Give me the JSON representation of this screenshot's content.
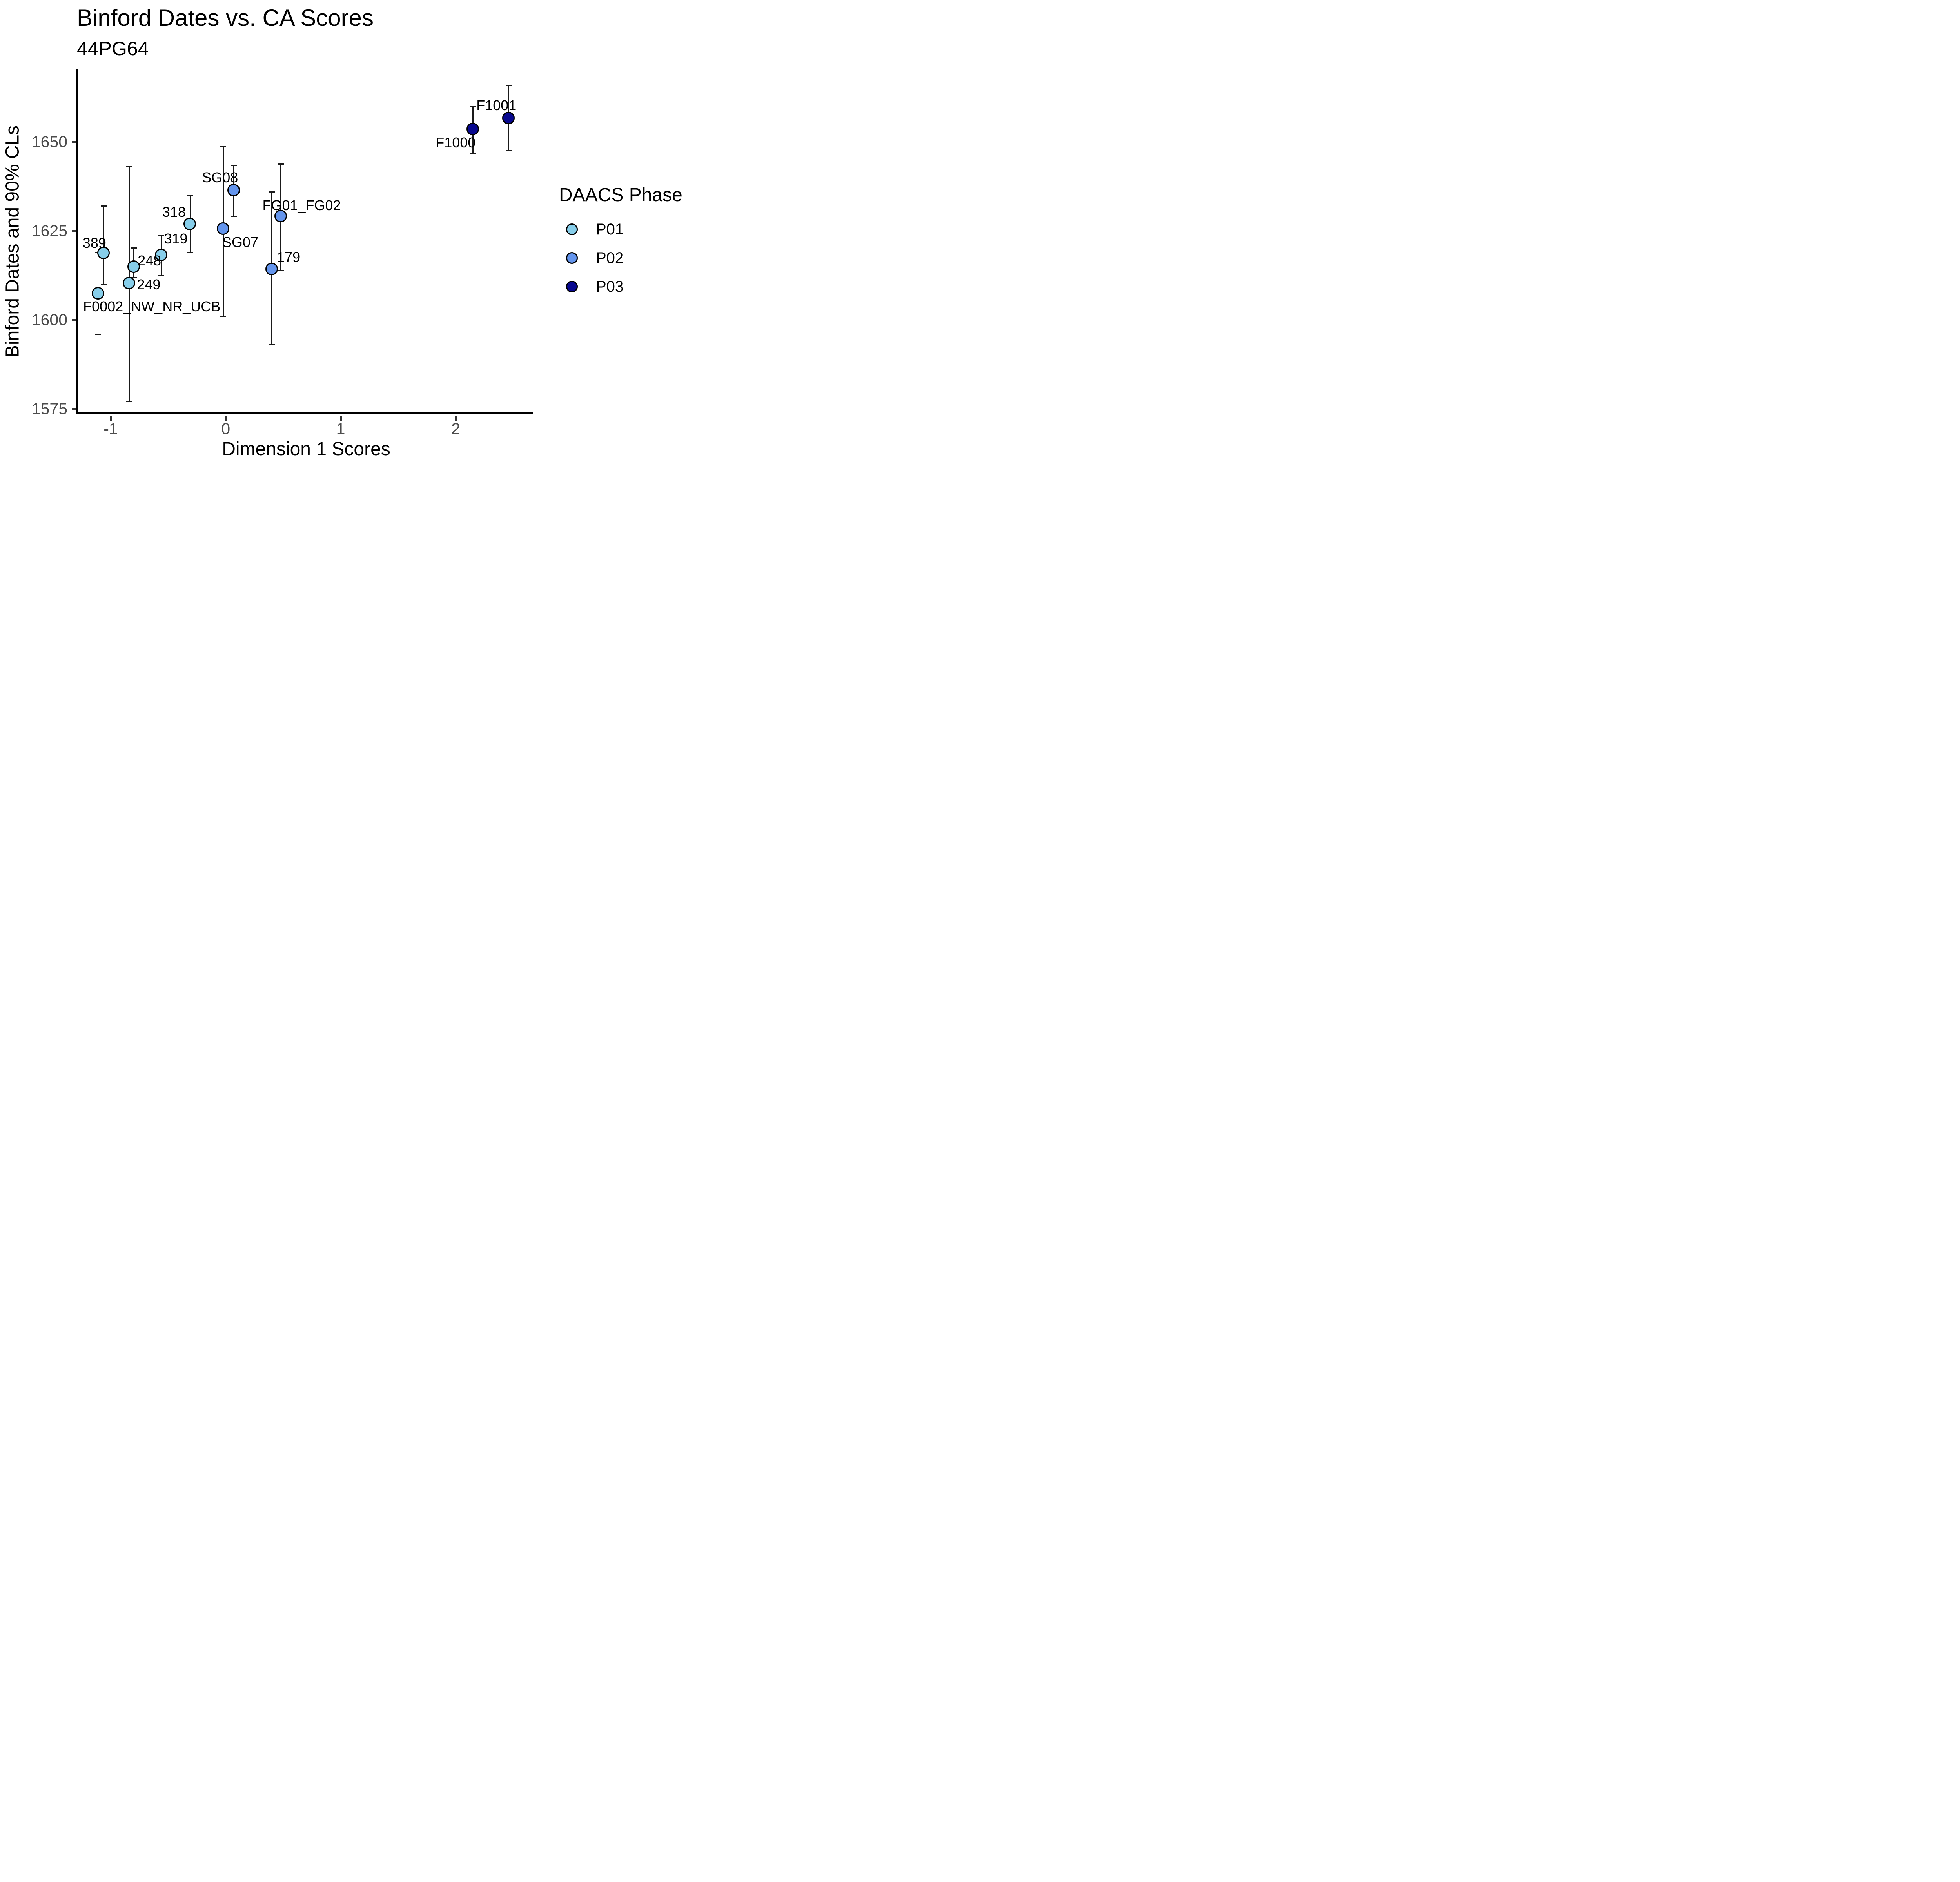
{
  "title": "Binford Dates vs. CA Scores",
  "subtitle": "44PG64",
  "axes": {
    "x_label": "Dimension 1 Scores",
    "y_label": "Binford Dates and 90% CLs",
    "x_tick_labels": [
      "-1",
      "0",
      "1",
      "2"
    ],
    "y_tick_labels": [
      "1575",
      "1600",
      "1625",
      "1650"
    ]
  },
  "legend": {
    "title": "DAACS Phase",
    "items": [
      {
        "label": "P01",
        "color": "#87CEEA"
      },
      {
        "label": "P02",
        "color": "#6495ED"
      },
      {
        "label": "P03",
        "color": "#08088F"
      }
    ]
  },
  "colors": {
    "tick_label": "#4d4d4d",
    "axis_line": "#000000",
    "error_bar": "#1a1a1a",
    "marker_stroke": "#000000"
  },
  "chart_data": {
    "type": "scatter",
    "title": "Binford Dates vs. CA Scores",
    "subtitle": "44PG64",
    "xlabel": "Dimension 1 Scores",
    "ylabel": "Binford Dates and 90% CLs",
    "x_ticks": [
      -1,
      0,
      1,
      2
    ],
    "y_ticks": [
      1575,
      1600,
      1625,
      1650
    ],
    "xlim": [
      -1.3,
      2.67
    ],
    "ylim": [
      1573,
      1670
    ],
    "grid": false,
    "legend_position": "right",
    "error_bars": "90% confidence limits",
    "series": [
      {
        "name": "P01",
        "color": "#87CEEA",
        "points": [
          {
            "label": "389",
            "x": -1.06,
            "y": 1618.8,
            "ci_low": 1610,
            "ci_high": 1632,
            "label_offset": [
              -24,
              -25
            ]
          },
          {
            "label": "F0002_NW_NR_UCB",
            "x": -1.11,
            "y": 1607.4,
            "ci_low": 1596,
            "ci_high": 1619,
            "label_offset": [
              137,
              33
            ]
          },
          {
            "label": "248",
            "x": -0.8,
            "y": 1614.9,
            "ci_low": 1612,
            "ci_high": 1620.2,
            "label_offset": [
              40,
              -16
            ]
          },
          {
            "label": "249",
            "x": -0.84,
            "y": 1610.3,
            "ci_low": 1577,
            "ci_high": 1643,
            "label_offset": [
              50,
              3
            ]
          },
          {
            "label": "318",
            "x": -0.31,
            "y": 1627.0,
            "ci_low": 1619,
            "ci_high": 1635,
            "label_offset": [
              -41,
              -30
            ]
          },
          {
            "label": "319",
            "x": -0.56,
            "y": 1618.2,
            "ci_low": 1612.4,
            "ci_high": 1623.6,
            "label_offset": [
              37,
              -42
            ]
          }
        ]
      },
      {
        "name": "P02",
        "color": "#6495ED",
        "points": [
          {
            "label": "SG08",
            "x": 0.07,
            "y": 1636.4,
            "ci_low": 1629,
            "ci_high": 1643.4,
            "label_offset": [
              -35,
              -33
            ]
          },
          {
            "label": "SG07",
            "x": -0.02,
            "y": 1625.6,
            "ci_low": 1601,
            "ci_high": 1648.8,
            "label_offset": [
              43,
              34
            ]
          },
          {
            "label": "FG01_FG02",
            "x": 0.48,
            "y": 1629.1,
            "ci_low": 1614,
            "ci_high": 1643.8,
            "label_offset": [
              53,
              -28
            ]
          },
          {
            "label": "179",
            "x": 0.4,
            "y": 1614.3,
            "ci_low": 1593,
            "ci_high": 1636,
            "label_offset": [
              43,
              -30
            ]
          }
        ]
      },
      {
        "name": "P03",
        "color": "#08088F",
        "points": [
          {
            "label": "F1000",
            "x": 2.15,
            "y": 1653.6,
            "ci_low": 1646.7,
            "ci_high": 1659.9,
            "label_offset": [
              -44,
              34
            ]
          },
          {
            "label": "F1001",
            "x": 2.46,
            "y": 1656.7,
            "ci_low": 1647.5,
            "ci_high": 1666,
            "label_offset": [
              -31,
              -32
            ]
          }
        ]
      }
    ]
  }
}
